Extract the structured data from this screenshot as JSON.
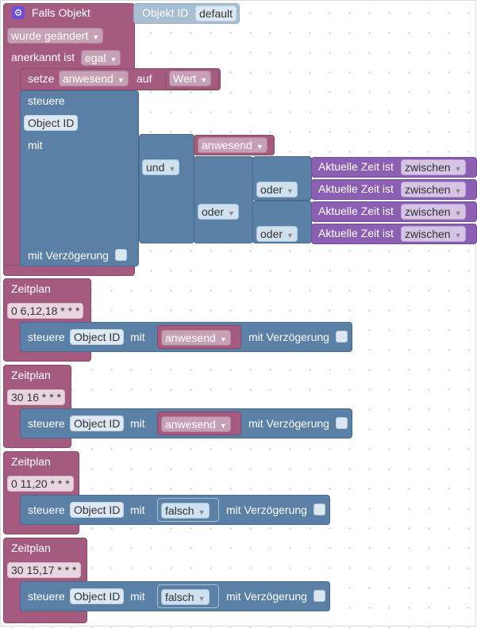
{
  "event": {
    "title": "Falls Objekt",
    "object_label": "Objekt ID",
    "object_value": "default",
    "changed": "wurde geändert",
    "ack_label": "anerkannt ist",
    "ack_value": "egal"
  },
  "set_block": {
    "label": "setze",
    "var": "anwesend",
    "to": "auf",
    "value": "Wert"
  },
  "control_block": {
    "label": "steuere",
    "object": "Object ID",
    "with": "mit",
    "delay": "mit Verzögerung",
    "and_op": "und",
    "and_var": "anwesend",
    "or_op": "oder",
    "time_label": "Aktuelle Zeit ist",
    "time_mode": "zwischen"
  },
  "schedules": [
    {
      "title": "Zeitplan",
      "cron": "0 6,12,18 * * *",
      "control": "steuere",
      "object": "Object ID",
      "with": "mit",
      "value": "anwesend",
      "delay": "mit Verzögerung"
    },
    {
      "title": "Zeitplan",
      "cron": "30 16 * * *",
      "control": "steuere",
      "object": "Object ID",
      "with": "mit",
      "value": "anwesend",
      "delay": "mit Verzögerung"
    },
    {
      "title": "Zeitplan",
      "cron": "0 11,20 * * *",
      "control": "steuere",
      "object": "Object ID",
      "with": "mit",
      "value": "falsch",
      "delay": "mit Verzögerung"
    },
    {
      "title": "Zeitplan",
      "cron": "30 15,17 * * *",
      "control": "steuere",
      "object": "Object ID",
      "with": "mit",
      "value": "falsch",
      "delay": "mit Verzögerung"
    }
  ],
  "colors": {
    "event": "#a55b80",
    "control": "#5b80a5",
    "time": "#8c5fb2",
    "badge": "#6b4dd8"
  }
}
